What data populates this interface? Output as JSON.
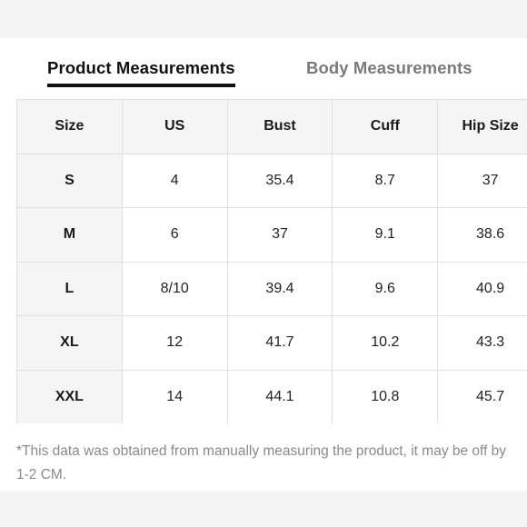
{
  "tabs": {
    "active_label": "Product Measurements",
    "inactive_label": "Body Measurements"
  },
  "table": {
    "headers": [
      "Size",
      "US",
      "Bust",
      "Cuff",
      "Hip Size"
    ],
    "rows": [
      [
        "S",
        "4",
        "35.4",
        "8.7",
        "37"
      ],
      [
        "M",
        "6",
        "37",
        "9.1",
        "38.6"
      ],
      [
        "L",
        "8/10",
        "39.4",
        "9.6",
        "40.9"
      ],
      [
        "XL",
        "12",
        "41.7",
        "10.2",
        "43.3"
      ],
      [
        "XXL",
        "14",
        "44.1",
        "10.8",
        "45.7"
      ]
    ]
  },
  "footnote": "*This data was obtained from manually measuring the product, it may be off by 1-2 CM.",
  "colors": {
    "active_tab": "#111111",
    "inactive_tab": "#7a7a7a",
    "header_bg": "#f5f5f5",
    "border": "#e0e0e0",
    "footnote": "#8a8a8a"
  }
}
